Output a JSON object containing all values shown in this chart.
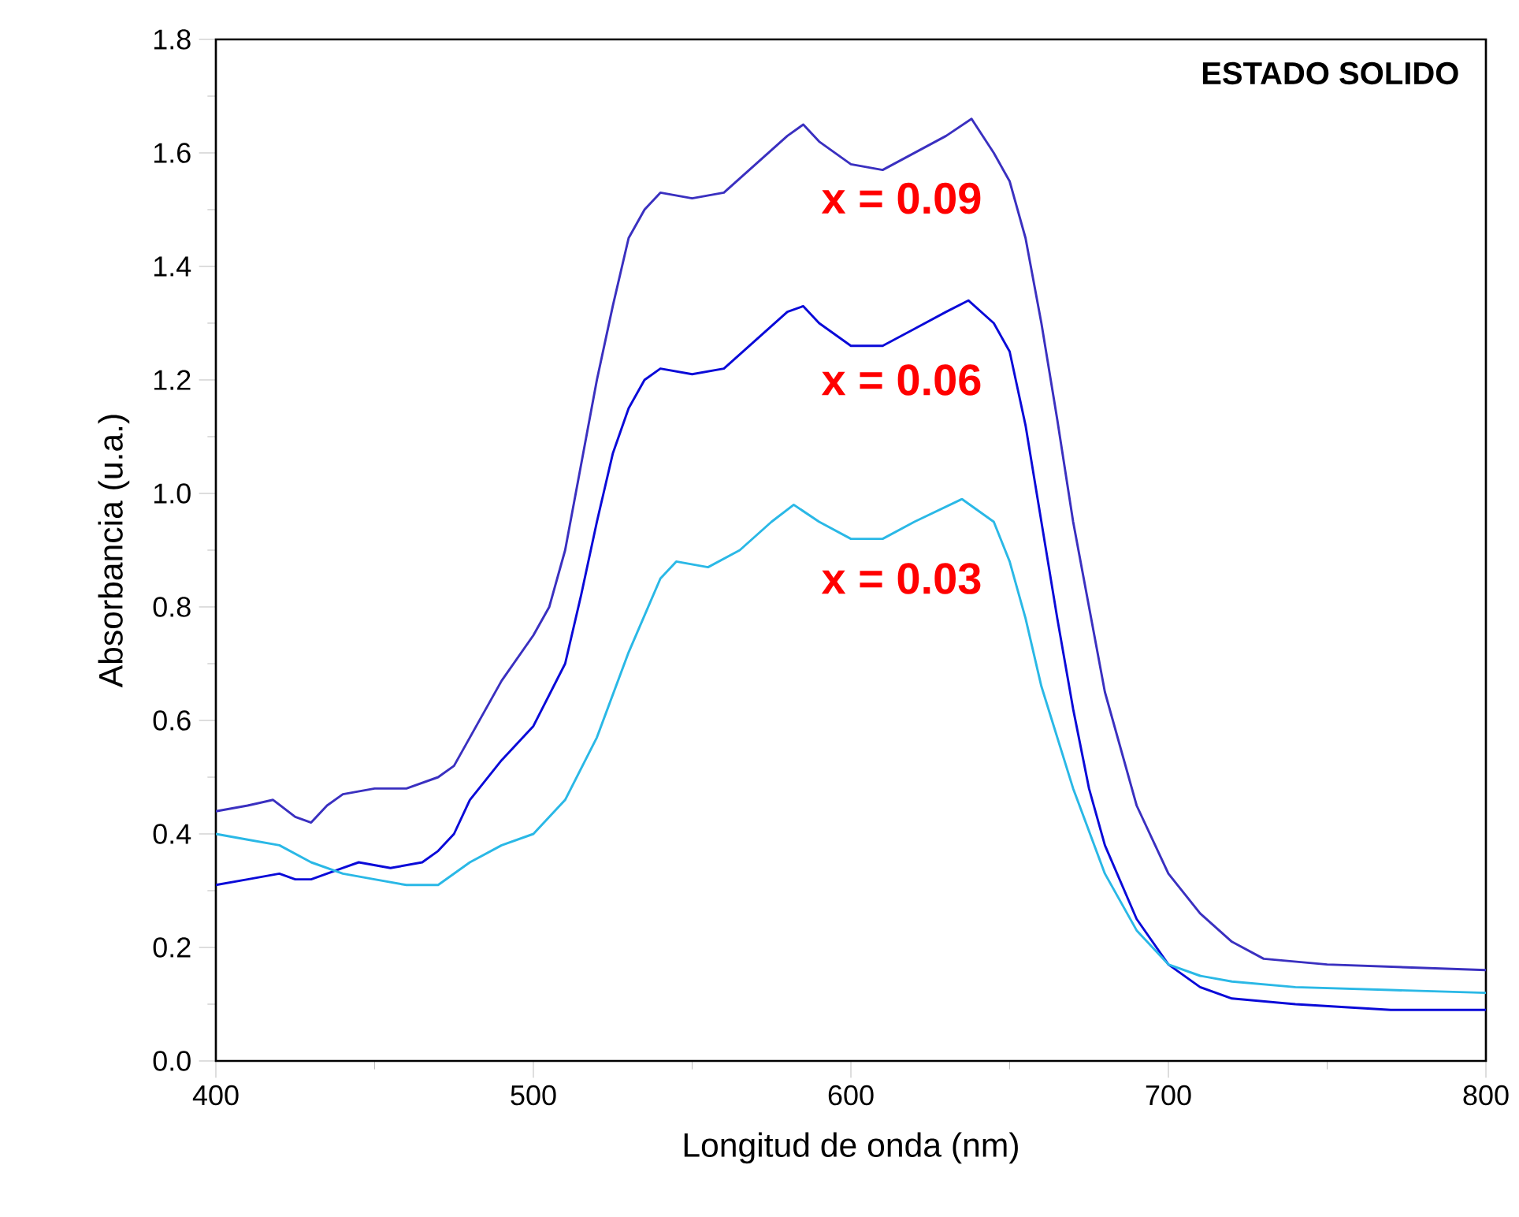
{
  "chart_data": {
    "type": "line",
    "xlabel": "Longitud de onda (nm)",
    "ylabel": "Absorbancia (u.a.)",
    "annotations": [
      "ESTADO SOLIDO"
    ],
    "xlim": [
      400,
      800
    ],
    "ylim": [
      0,
      1.8
    ],
    "xticks": [
      400,
      500,
      600,
      700,
      800
    ],
    "yticks": [
      {
        "value": 0,
        "label": "0.0"
      },
      {
        "value": 0.2,
        "label": "0.2"
      },
      {
        "value": 0.4,
        "label": "0.4"
      },
      {
        "value": 0.6,
        "label": "0.6"
      },
      {
        "value": 0.8,
        "label": "0.8"
      },
      {
        "value": 1.0,
        "label": "1.0"
      },
      {
        "value": 1.2,
        "label": "1.2"
      },
      {
        "value": 1.4,
        "label": "1.4"
      },
      {
        "value": 1.6,
        "label": "1.6"
      },
      {
        "value": 1.8,
        "label": "1.8"
      }
    ],
    "series": [
      {
        "name": "x = 0.09",
        "color": "#3a30c0",
        "x": [
          400,
          410,
          418,
          425,
          430,
          435,
          440,
          450,
          460,
          470,
          475,
          480,
          490,
          500,
          505,
          510,
          515,
          520,
          525,
          530,
          535,
          540,
          550,
          560,
          570,
          580,
          585,
          590,
          600,
          610,
          620,
          630,
          638,
          645,
          650,
          655,
          660,
          665,
          670,
          675,
          680,
          690,
          700,
          710,
          720,
          730,
          750,
          775,
          800
        ],
        "values": [
          0.44,
          0.45,
          0.46,
          0.43,
          0.42,
          0.45,
          0.47,
          0.48,
          0.48,
          0.5,
          0.52,
          0.57,
          0.67,
          0.75,
          0.8,
          0.9,
          1.05,
          1.2,
          1.33,
          1.45,
          1.5,
          1.53,
          1.52,
          1.53,
          1.58,
          1.63,
          1.65,
          1.62,
          1.58,
          1.57,
          1.6,
          1.63,
          1.66,
          1.6,
          1.55,
          1.45,
          1.3,
          1.13,
          0.95,
          0.8,
          0.65,
          0.45,
          0.33,
          0.26,
          0.21,
          0.18,
          0.17,
          0.165,
          0.16
        ]
      },
      {
        "name": "x = 0.06",
        "color": "#0a0ad8",
        "x": [
          400,
          410,
          420,
          425,
          430,
          440,
          445,
          455,
          465,
          470,
          475,
          480,
          490,
          500,
          510,
          515,
          520,
          525,
          530,
          535,
          540,
          550,
          560,
          570,
          580,
          585,
          590,
          600,
          610,
          620,
          630,
          637,
          645,
          650,
          655,
          660,
          665,
          670,
          675,
          680,
          690,
          700,
          710,
          720,
          740,
          770,
          800
        ],
        "values": [
          0.31,
          0.32,
          0.33,
          0.32,
          0.32,
          0.34,
          0.35,
          0.34,
          0.35,
          0.37,
          0.4,
          0.46,
          0.53,
          0.59,
          0.7,
          0.82,
          0.95,
          1.07,
          1.15,
          1.2,
          1.22,
          1.21,
          1.22,
          1.27,
          1.32,
          1.33,
          1.3,
          1.26,
          1.26,
          1.29,
          1.32,
          1.34,
          1.3,
          1.25,
          1.12,
          0.95,
          0.78,
          0.62,
          0.48,
          0.38,
          0.25,
          0.17,
          0.13,
          0.11,
          0.1,
          0.09,
          0.09
        ]
      },
      {
        "name": "x = 0.03",
        "color": "#2ab8e6",
        "x": [
          400,
          410,
          420,
          430,
          440,
          450,
          460,
          470,
          480,
          490,
          500,
          510,
          520,
          530,
          540,
          545,
          555,
          565,
          575,
          582,
          590,
          600,
          610,
          620,
          635,
          645,
          650,
          655,
          660,
          670,
          680,
          690,
          700,
          710,
          720,
          740,
          770,
          800
        ],
        "values": [
          0.4,
          0.39,
          0.38,
          0.35,
          0.33,
          0.32,
          0.31,
          0.31,
          0.35,
          0.38,
          0.4,
          0.46,
          0.57,
          0.72,
          0.85,
          0.88,
          0.87,
          0.9,
          0.95,
          0.98,
          0.95,
          0.92,
          0.92,
          0.95,
          0.99,
          0.95,
          0.88,
          0.78,
          0.66,
          0.48,
          0.33,
          0.23,
          0.17,
          0.15,
          0.14,
          0.13,
          0.125,
          0.12
        ]
      }
    ]
  }
}
